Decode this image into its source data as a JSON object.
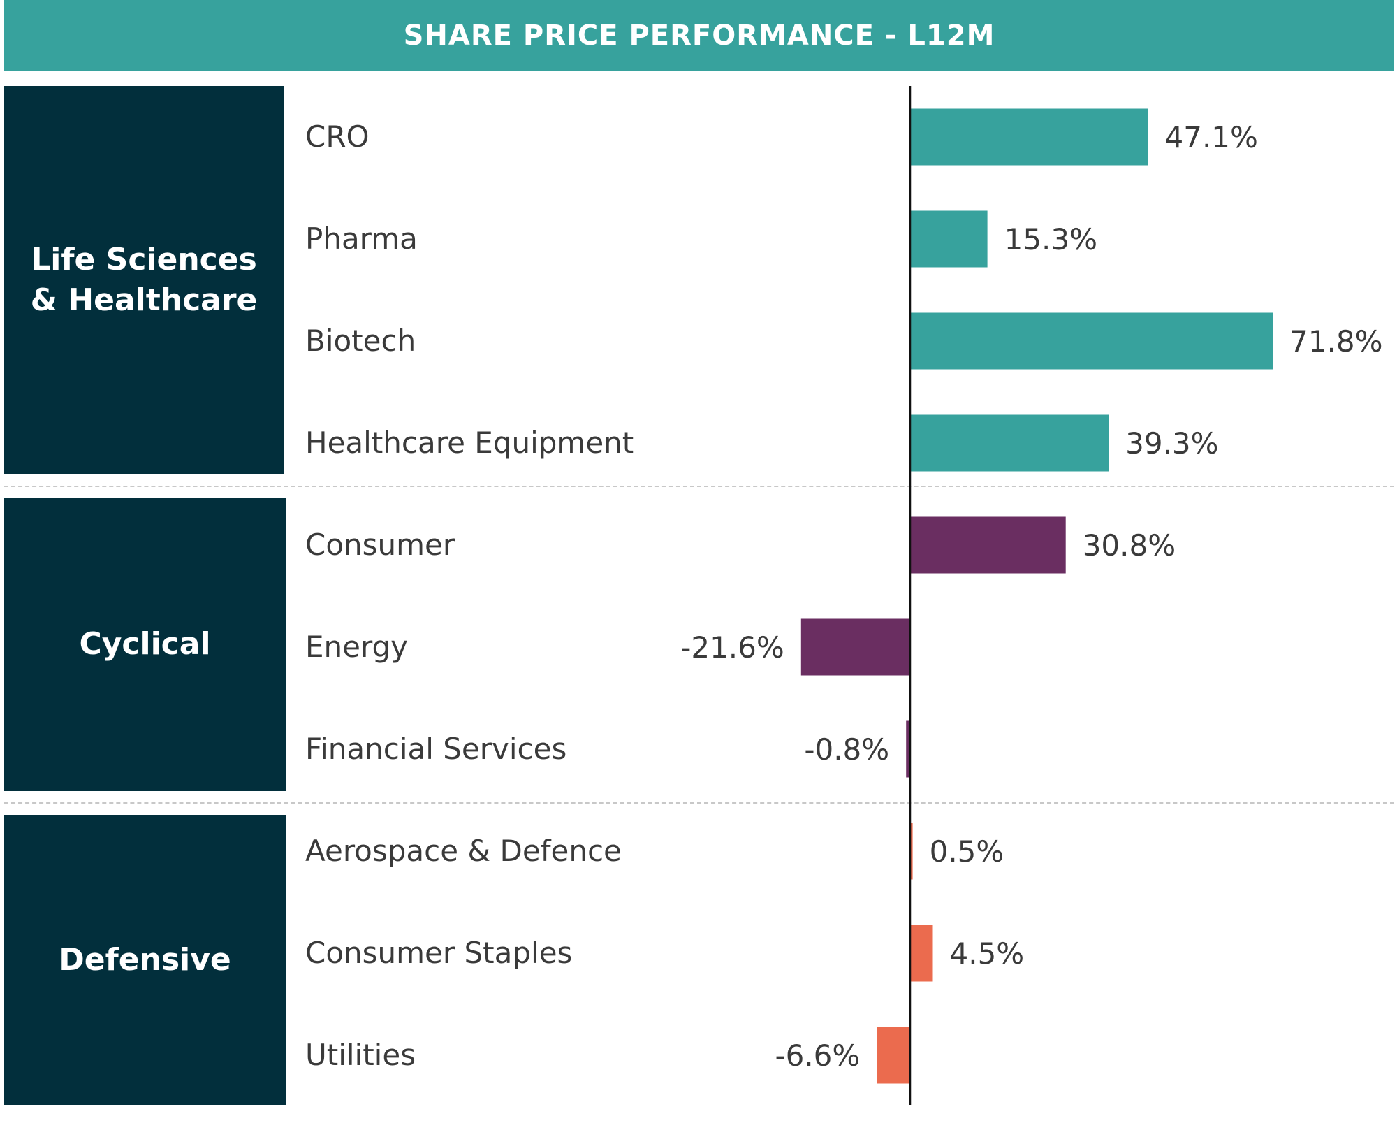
{
  "title": "SHARE PRICE PERFORMANCE - L12M",
  "chart_data": {
    "type": "bar",
    "orientation": "horizontal",
    "title": "SHARE PRICE PERFORMANCE - L12M",
    "value_suffix": "%",
    "groups": [
      {
        "name": "Life Sciences & Healthcare",
        "color": "#37A29D",
        "categories": [
          "CRO",
          "Pharma",
          "Biotech",
          "Healthcare Equipment"
        ],
        "values": [
          47.1,
          15.3,
          71.8,
          39.3
        ]
      },
      {
        "name": "Cyclical",
        "color": "#6A2E61",
        "categories": [
          "Consumer",
          "Energy",
          "Financial Services"
        ],
        "values": [
          30.8,
          -21.6,
          -0.8
        ]
      },
      {
        "name": "Defensive",
        "color": "#EB6B4E",
        "categories": [
          "Aerospace & Defence",
          "Consumer Staples",
          "Utilities"
        ],
        "values": [
          0.5,
          4.5,
          -6.6
        ]
      }
    ]
  }
}
